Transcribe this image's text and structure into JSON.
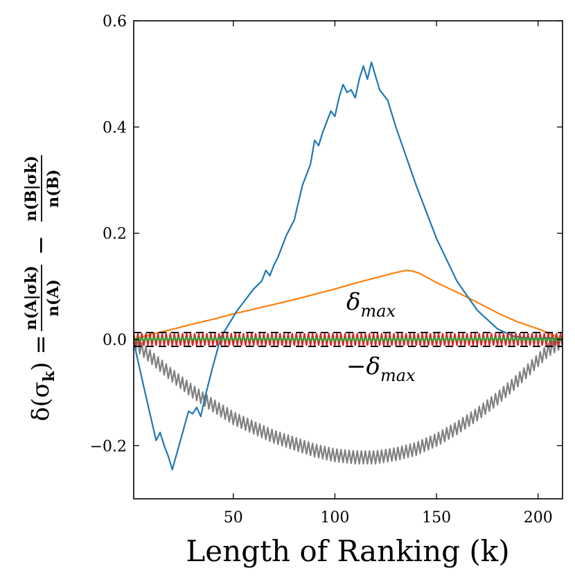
{
  "chart_data": {
    "type": "line",
    "title": "",
    "xlabel": "Length of Ranking (k)",
    "ylabel": "δ(σ_k) = n(A|σ_k)/n(A) − n(B|σ_k)/n(B)",
    "ylabel_parts": {
      "lhs": "δ(σ",
      "lhs_sub": "k",
      "lhs_close": ") =",
      "num_a": "n(A|σk)",
      "den_a": "n(A)",
      "minus": "−",
      "num_b": "n(B|σk)",
      "den_b": "n(B)"
    },
    "xlim": [
      1,
      212
    ],
    "ylim": [
      -0.3,
      0.6
    ],
    "xticks": [
      50,
      100,
      150,
      200
    ],
    "xtick_labels": [
      "50",
      "100",
      "150",
      "200"
    ],
    "yticks": [
      -0.2,
      0.0,
      0.2,
      0.4,
      0.6
    ],
    "ytick_labels": [
      "−0.2",
      "0.0",
      "0.2",
      "0.4",
      "0.6"
    ],
    "grid": false,
    "legend": "none",
    "threshold_lines": [
      0.013,
      -0.013
    ],
    "annotations": [
      {
        "text": "δmax",
        "base": "δ",
        "sub": "max",
        "x": 104,
        "y": 0.06
      },
      {
        "text": "−δmax",
        "base": "−δ",
        "sub": "max",
        "x": 104,
        "y": -0.065
      }
    ],
    "series": [
      {
        "name": "blue",
        "color": "#1f77b4",
        "x": [
          1,
          6,
          12,
          14,
          16,
          18,
          20,
          24,
          28,
          30,
          32,
          34,
          36,
          40,
          44,
          48,
          52,
          56,
          60,
          64,
          66,
          68,
          70,
          72,
          76,
          80,
          84,
          88,
          90,
          92,
          94,
          96,
          98,
          100,
          102,
          104,
          106,
          108,
          110,
          112,
          114,
          116,
          118,
          122,
          126,
          130,
          140,
          150,
          160,
          170,
          180,
          188,
          195,
          200,
          205,
          210,
          212
        ],
        "y": [
          -0.005,
          -0.09,
          -0.19,
          -0.175,
          -0.2,
          -0.22,
          -0.245,
          -0.19,
          -0.135,
          -0.14,
          -0.128,
          -0.145,
          -0.11,
          -0.05,
          0.005,
          0.03,
          0.055,
          0.075,
          0.095,
          0.11,
          0.13,
          0.12,
          0.14,
          0.155,
          0.195,
          0.225,
          0.29,
          0.33,
          0.375,
          0.365,
          0.39,
          0.41,
          0.43,
          0.42,
          0.455,
          0.48,
          0.465,
          0.47,
          0.455,
          0.49,
          0.515,
          0.49,
          0.522,
          0.47,
          0.45,
          0.4,
          0.29,
          0.19,
          0.11,
          0.055,
          0.02,
          0.006,
          0.002,
          0.001,
          0.003,
          0.001,
          0.0
        ]
      },
      {
        "name": "orange",
        "color": "#ff7f0e",
        "x": [
          1,
          10,
          20,
          30,
          40,
          50,
          60,
          70,
          80,
          90,
          100,
          110,
          120,
          130,
          135,
          138,
          142,
          150,
          160,
          170,
          180,
          190,
          200,
          208,
          212
        ],
        "y": [
          0.0,
          0.01,
          0.019,
          0.029,
          0.038,
          0.048,
          0.057,
          0.066,
          0.075,
          0.085,
          0.095,
          0.106,
          0.116,
          0.126,
          0.13,
          0.129,
          0.124,
          0.107,
          0.089,
          0.07,
          0.05,
          0.033,
          0.02,
          0.007,
          0.0
        ]
      },
      {
        "name": "gray",
        "color": "#808080",
        "zigzag": 0.012,
        "x": [
          1,
          10,
          20,
          30,
          40,
          50,
          60,
          70,
          80,
          90,
          100,
          110,
          120,
          130,
          140,
          150,
          160,
          170,
          180,
          190,
          200,
          205,
          210,
          212
        ],
        "y": [
          -0.005,
          -0.035,
          -0.068,
          -0.098,
          -0.124,
          -0.148,
          -0.166,
          -0.183,
          -0.196,
          -0.209,
          -0.218,
          -0.222,
          -0.222,
          -0.216,
          -0.206,
          -0.189,
          -0.167,
          -0.141,
          -0.111,
          -0.077,
          -0.039,
          -0.02,
          -0.008,
          -0.002
        ]
      },
      {
        "name": "red",
        "color": "#d62728",
        "zigzag": 0.011,
        "x": [
          1,
          20,
          60,
          100,
          140,
          180,
          205,
          212
        ],
        "y": [
          0.0,
          0.0,
          0.0,
          0.0,
          0.0,
          0.0,
          0.0,
          0.0
        ]
      },
      {
        "name": "green",
        "color": "#2ca02c",
        "zigzag": 0.003,
        "x": [
          1,
          20,
          60,
          100,
          140,
          180,
          205,
          212
        ],
        "y": [
          0.0,
          0.001,
          0.001,
          0.0,
          0.0,
          0.001,
          0.0,
          0.0
        ]
      }
    ]
  }
}
